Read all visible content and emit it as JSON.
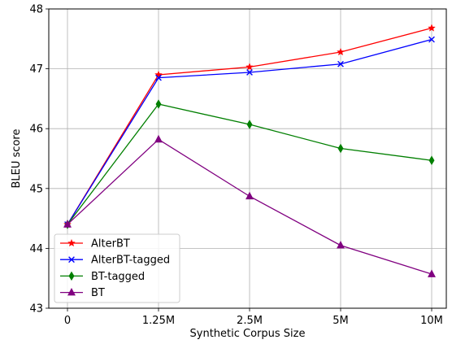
{
  "chart_data": {
    "type": "line",
    "xlabel": "Synthetic Corpus Size",
    "ylabel": "BLEU score",
    "categories": [
      "0",
      "1.25M",
      "2.5M",
      "5M",
      "10M"
    ],
    "ylim": [
      43,
      48
    ],
    "yticks": [
      43,
      44,
      45,
      46,
      47,
      48
    ],
    "grid": true,
    "legend_position": "lower-left",
    "series": [
      {
        "name": "AlterBT",
        "color": "#ff0000",
        "marker": "star",
        "values": [
          44.4,
          46.9,
          47.03,
          47.28,
          47.68
        ]
      },
      {
        "name": "AlterBT-tagged",
        "color": "#0000ff",
        "marker": "x",
        "values": [
          44.4,
          46.85,
          46.94,
          47.08,
          47.49
        ]
      },
      {
        "name": "BT-tagged",
        "color": "#007f00",
        "marker": "thin-diamond",
        "values": [
          44.4,
          46.41,
          46.07,
          45.67,
          45.47
        ]
      },
      {
        "name": "BT",
        "color": "#800080",
        "marker": "triangle",
        "values": [
          44.4,
          45.82,
          44.87,
          44.05,
          43.57
        ]
      }
    ]
  }
}
